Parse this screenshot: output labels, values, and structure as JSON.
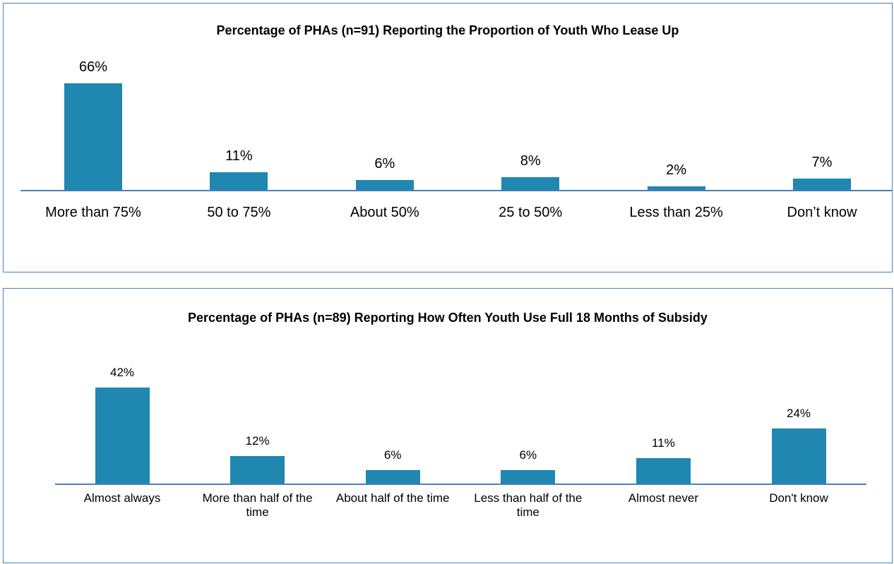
{
  "chart_data": [
    {
      "type": "bar",
      "title": "Percentage of PHAs (n=91) Reporting the Proportion of Youth Who Lease Up",
      "categories": [
        "More than 75%",
        "50 to 75%",
        "About 50%",
        "25 to 50%",
        "Less than 25%",
        "Don’t know"
      ],
      "values": [
        66,
        11,
        6,
        8,
        2,
        7
      ],
      "value_labels": [
        "66%",
        "11%",
        "6%",
        "8%",
        "2%",
        "7%"
      ],
      "color": "#1f87b0"
    },
    {
      "type": "bar",
      "title": "Percentage of PHAs (n=89) Reporting How Often Youth Use Full 18 Months of Subsidy",
      "categories": [
        "Almost always",
        "More than half of the time",
        "About half of the time",
        "Less than half of the time",
        "Almost never",
        "Don't know"
      ],
      "values": [
        42,
        12,
        6,
        6,
        11,
        24
      ],
      "value_labels": [
        "42%",
        "12%",
        "6%",
        "6%",
        "11%",
        "24%"
      ],
      "color": "#1f87b0"
    }
  ]
}
